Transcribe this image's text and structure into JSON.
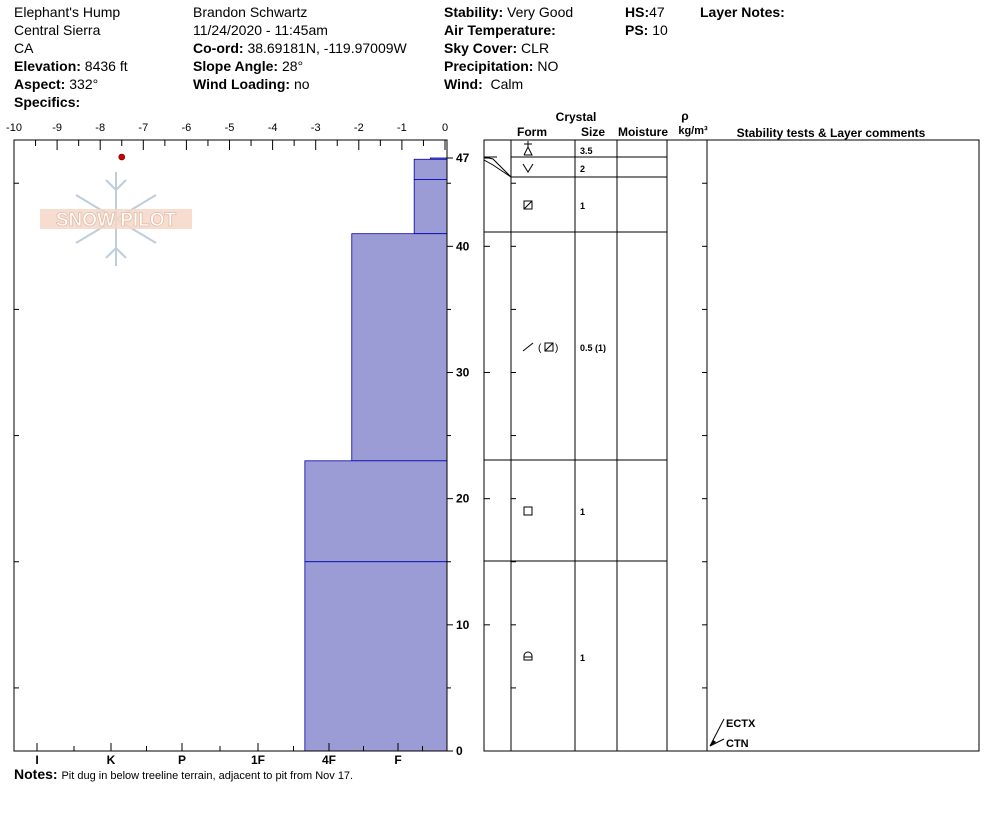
{
  "header": {
    "location": "Elephant's Hump",
    "range": "Central Sierra",
    "state": "CA",
    "elevation_label": "Elevation:",
    "elevation_value": "8436 ft",
    "aspect_label": "Aspect:",
    "aspect_value": "332°",
    "specifics_label": "Specifics:",
    "observer": "Brandon Schwartz",
    "datetime": "11/24/2020 - 11:45am",
    "coord_label": "Co-ord:",
    "coord_value": "38.69181N, -119.97009W",
    "slope_label": "Slope Angle:",
    "slope_value": "28°",
    "wind_loading_label": "Wind Loading:",
    "wind_loading_value": "no",
    "stability_label": "Stability:",
    "stability_value": "Very Good",
    "air_temp_label": "Air Temperature:",
    "sky_label": "Sky Cover:",
    "sky_value": "CLR",
    "precip_label": "Precipitation:",
    "precip_value": "NO",
    "wind_label": "Wind:",
    "wind_value": "Calm",
    "hs_label": "HS:",
    "hs_value": "47",
    "ps_label": "PS:",
    "ps_value": "10",
    "layer_notes_label": "Layer Notes:"
  },
  "notes": {
    "label": "Notes:",
    "text": "Pit dug in below treeline terrain, adjacent to pit from Nov 17."
  },
  "logo_text": "SNOW PILOT",
  "table_headers": {
    "crystal": "Crystal",
    "form": "Form",
    "size": "Size",
    "moisture": "Moisture",
    "rho": "ρ",
    "density_unit": "kg/m³",
    "stability": "Stability tests & Layer comments"
  },
  "colors": {
    "hardness_fill": "#9b9bd6",
    "hardness_stroke": "#0000aa",
    "temp_point": "#cc0000"
  },
  "chart_data": {
    "type": "bar",
    "title": "",
    "temperature_axis": {
      "ticks": [
        "-10",
        "-9",
        "-8",
        "-7",
        "-6",
        "-5",
        "-4",
        "-3",
        "-2",
        "-1",
        "0"
      ],
      "range": [
        -10,
        0
      ]
    },
    "hardness_axis": {
      "ticks": [
        "I",
        "K",
        "P",
        "1F",
        "4F",
        "F"
      ],
      "values": [
        6,
        5,
        4,
        3,
        2,
        1
      ]
    },
    "height_axis": {
      "ticks": [
        "0",
        "10",
        "20",
        "30",
        "40",
        "47"
      ],
      "range": [
        0,
        47
      ]
    },
    "layers": [
      {
        "top": 47,
        "bottom": 46.9,
        "hardness": 0.34,
        "form": "surface-hoar",
        "size": "3.5"
      },
      {
        "top": 46.9,
        "bottom": 45.3,
        "hardness": 0.67,
        "form": "depth-hoar",
        "size": "2"
      },
      {
        "top": 45.3,
        "bottom": 41,
        "hardness": 0.67,
        "form": "rounding-faceted",
        "size": "1"
      },
      {
        "top": 41,
        "bottom": 23,
        "hardness": 1.67,
        "form": "decomposing-rounding-faceted",
        "size": "0.5 (1)"
      },
      {
        "top": 23,
        "bottom": 15,
        "hardness": 2.34,
        "form": "faceted",
        "size": "1"
      },
      {
        "top": 15,
        "bottom": 0,
        "hardness": 2.34,
        "form": "melt-freeze",
        "size": "1"
      }
    ],
    "temperature_points": [
      {
        "temp": -7.5,
        "height": 47
      }
    ],
    "stability_tests": [
      {
        "label": "ECTX",
        "height": 2
      },
      {
        "label": "CTN",
        "height": 0.5
      }
    ]
  }
}
